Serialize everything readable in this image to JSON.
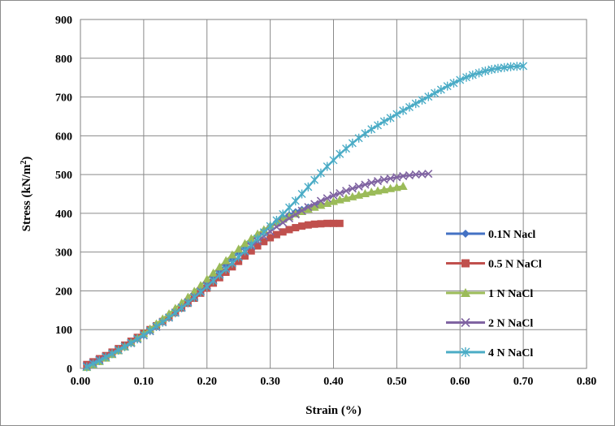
{
  "chart_data": {
    "type": "line",
    "title": "",
    "xlabel": "Strain (%)",
    "ylabel_main": "Stress  (kN/m",
    "ylabel_sup": "2",
    "ylabel_close": ")",
    "xlim": [
      0,
      0.8
    ],
    "ylim": [
      0,
      900
    ],
    "xticks": [
      0,
      0.1,
      0.2,
      0.3,
      0.4,
      0.5,
      0.6,
      0.7,
      0.8
    ],
    "xtick_labels": [
      "0.00",
      "0.10",
      "0.20",
      "0.30",
      "0.40",
      "0.50",
      "0.60",
      "0.70",
      "0.80"
    ],
    "yticks": [
      0,
      100,
      200,
      300,
      400,
      500,
      600,
      700,
      800,
      900
    ],
    "ytick_labels": [
      "0",
      "100",
      "200",
      "300",
      "400",
      "500",
      "600",
      "700",
      "800",
      "900"
    ],
    "grid": true,
    "legend_position": "right",
    "series": [
      {
        "name": "0.1N Nacl",
        "color": "#4472C4",
        "marker": "diamond",
        "points": [
          [
            0.01,
            5
          ],
          [
            0.02,
            12
          ],
          [
            0.03,
            20
          ],
          [
            0.04,
            28
          ],
          [
            0.05,
            37
          ],
          [
            0.06,
            46
          ],
          [
            0.07,
            55
          ],
          [
            0.08,
            65
          ],
          [
            0.09,
            75
          ],
          [
            0.1,
            85
          ],
          [
            0.11,
            96
          ],
          [
            0.12,
            108
          ],
          [
            0.13,
            120
          ],
          [
            0.14,
            133
          ],
          [
            0.15,
            146
          ],
          [
            0.16,
            160
          ],
          [
            0.17,
            175
          ],
          [
            0.18,
            190
          ],
          [
            0.19,
            205
          ],
          [
            0.2,
            220
          ],
          [
            0.21,
            236
          ],
          [
            0.22,
            252
          ],
          [
            0.23,
            268
          ],
          [
            0.24,
            284
          ],
          [
            0.25,
            300
          ],
          [
            0.26,
            315
          ],
          [
            0.27,
            330
          ],
          [
            0.28,
            343
          ],
          [
            0.29,
            356
          ],
          [
            0.3,
            367
          ],
          [
            0.31,
            378
          ],
          [
            0.32,
            388
          ],
          [
            0.33,
            396
          ],
          [
            0.34,
            404
          ],
          [
            0.35,
            410
          ],
          [
            0.36,
            416
          ],
          [
            0.37,
            420
          ],
          [
            0.38,
            424
          ]
        ]
      },
      {
        "name": "0.5 N NaCl",
        "color": "#C0504D",
        "marker": "square",
        "points": [
          [
            0.01,
            10
          ],
          [
            0.02,
            17
          ],
          [
            0.03,
            25
          ],
          [
            0.04,
            33
          ],
          [
            0.05,
            42
          ],
          [
            0.06,
            51
          ],
          [
            0.07,
            60
          ],
          [
            0.08,
            70
          ],
          [
            0.09,
            80
          ],
          [
            0.1,
            90
          ],
          [
            0.11,
            100
          ],
          [
            0.12,
            110
          ],
          [
            0.13,
            121
          ],
          [
            0.14,
            132
          ],
          [
            0.15,
            144
          ],
          [
            0.16,
            156
          ],
          [
            0.17,
            168
          ],
          [
            0.18,
            181
          ],
          [
            0.19,
            194
          ],
          [
            0.2,
            207
          ],
          [
            0.21,
            220
          ],
          [
            0.22,
            234
          ],
          [
            0.23,
            248
          ],
          [
            0.24,
            262
          ],
          [
            0.25,
            276
          ],
          [
            0.26,
            290
          ],
          [
            0.27,
            303
          ],
          [
            0.28,
            316
          ],
          [
            0.29,
            327
          ],
          [
            0.3,
            337
          ],
          [
            0.31,
            345
          ],
          [
            0.32,
            352
          ],
          [
            0.33,
            358
          ],
          [
            0.34,
            363
          ],
          [
            0.35,
            367
          ],
          [
            0.36,
            370
          ],
          [
            0.37,
            372
          ],
          [
            0.38,
            373
          ],
          [
            0.39,
            374
          ],
          [
            0.4,
            374
          ],
          [
            0.41,
            374
          ]
        ]
      },
      {
        "name": "1 N NaCl",
        "color": "#9BBB59",
        "marker": "triangle",
        "points": [
          [
            0.01,
            3
          ],
          [
            0.02,
            10
          ],
          [
            0.03,
            18
          ],
          [
            0.04,
            27
          ],
          [
            0.05,
            36
          ],
          [
            0.06,
            46
          ],
          [
            0.07,
            56
          ],
          [
            0.08,
            67
          ],
          [
            0.09,
            78
          ],
          [
            0.1,
            90
          ],
          [
            0.11,
            102
          ],
          [
            0.12,
            115
          ],
          [
            0.13,
            128
          ],
          [
            0.14,
            141
          ],
          [
            0.15,
            155
          ],
          [
            0.16,
            169
          ],
          [
            0.17,
            184
          ],
          [
            0.18,
            199
          ],
          [
            0.19,
            214
          ],
          [
            0.2,
            230
          ],
          [
            0.21,
            246
          ],
          [
            0.22,
            262
          ],
          [
            0.23,
            278
          ],
          [
            0.24,
            293
          ],
          [
            0.25,
            308
          ],
          [
            0.26,
            322
          ],
          [
            0.27,
            335
          ],
          [
            0.28,
            347
          ],
          [
            0.29,
            358
          ],
          [
            0.3,
            368
          ],
          [
            0.31,
            377
          ],
          [
            0.32,
            385
          ],
          [
            0.33,
            392
          ],
          [
            0.34,
            399
          ],
          [
            0.35,
            405
          ],
          [
            0.36,
            411
          ],
          [
            0.37,
            416
          ],
          [
            0.38,
            421
          ],
          [
            0.39,
            426
          ],
          [
            0.4,
            431
          ],
          [
            0.41,
            435
          ],
          [
            0.42,
            439
          ],
          [
            0.43,
            443
          ],
          [
            0.44,
            447
          ],
          [
            0.45,
            451
          ],
          [
            0.46,
            455
          ],
          [
            0.47,
            458
          ],
          [
            0.48,
            461
          ],
          [
            0.49,
            464
          ],
          [
            0.5,
            467
          ],
          [
            0.51,
            470
          ]
        ]
      },
      {
        "name": "2 N NaCl",
        "color": "#8064A2",
        "marker": "x",
        "points": [
          [
            0.01,
            6
          ],
          [
            0.02,
            14
          ],
          [
            0.03,
            22
          ],
          [
            0.04,
            30
          ],
          [
            0.05,
            38
          ],
          [
            0.06,
            47
          ],
          [
            0.07,
            56
          ],
          [
            0.08,
            65
          ],
          [
            0.09,
            75
          ],
          [
            0.1,
            85
          ],
          [
            0.11,
            96
          ],
          [
            0.12,
            107
          ],
          [
            0.13,
            119
          ],
          [
            0.14,
            131
          ],
          [
            0.15,
            144
          ],
          [
            0.16,
            157
          ],
          [
            0.17,
            171
          ],
          [
            0.18,
            185
          ],
          [
            0.19,
            199
          ],
          [
            0.2,
            214
          ],
          [
            0.21,
            228
          ],
          [
            0.22,
            243
          ],
          [
            0.23,
            258
          ],
          [
            0.24,
            272
          ],
          [
            0.25,
            287
          ],
          [
            0.26,
            301
          ],
          [
            0.27,
            315
          ],
          [
            0.28,
            328
          ],
          [
            0.29,
            341
          ],
          [
            0.3,
            353
          ],
          [
            0.31,
            365
          ],
          [
            0.32,
            376
          ],
          [
            0.33,
            387
          ],
          [
            0.34,
            397
          ],
          [
            0.35,
            407
          ],
          [
            0.36,
            416
          ],
          [
            0.37,
            424
          ],
          [
            0.38,
            432
          ],
          [
            0.39,
            439
          ],
          [
            0.4,
            446
          ],
          [
            0.41,
            452
          ],
          [
            0.42,
            458
          ],
          [
            0.43,
            464
          ],
          [
            0.44,
            469
          ],
          [
            0.45,
            474
          ],
          [
            0.46,
            479
          ],
          [
            0.47,
            483
          ],
          [
            0.48,
            487
          ],
          [
            0.49,
            490
          ],
          [
            0.5,
            493
          ],
          [
            0.51,
            496
          ],
          [
            0.52,
            498
          ],
          [
            0.53,
            500
          ],
          [
            0.54,
            501
          ],
          [
            0.55,
            502
          ]
        ]
      },
      {
        "name": "4 N NaCl",
        "color": "#4BACC6",
        "marker": "star",
        "points": [
          [
            0.01,
            4
          ],
          [
            0.02,
            12
          ],
          [
            0.03,
            20
          ],
          [
            0.04,
            29
          ],
          [
            0.05,
            38
          ],
          [
            0.06,
            47
          ],
          [
            0.07,
            56
          ],
          [
            0.08,
            66
          ],
          [
            0.09,
            76
          ],
          [
            0.1,
            86
          ],
          [
            0.11,
            97
          ],
          [
            0.12,
            108
          ],
          [
            0.13,
            119
          ],
          [
            0.14,
            131
          ],
          [
            0.15,
            143
          ],
          [
            0.16,
            156
          ],
          [
            0.17,
            169
          ],
          [
            0.18,
            183
          ],
          [
            0.19,
            197
          ],
          [
            0.2,
            211
          ],
          [
            0.21,
            226
          ],
          [
            0.22,
            241
          ],
          [
            0.23,
            256
          ],
          [
            0.24,
            271
          ],
          [
            0.25,
            287
          ],
          [
            0.26,
            303
          ],
          [
            0.27,
            319
          ],
          [
            0.28,
            335
          ],
          [
            0.29,
            351
          ],
          [
            0.3,
            367
          ],
          [
            0.31,
            382
          ],
          [
            0.32,
            398
          ],
          [
            0.33,
            415
          ],
          [
            0.34,
            432
          ],
          [
            0.35,
            450
          ],
          [
            0.36,
            468
          ],
          [
            0.37,
            486
          ],
          [
            0.38,
            504
          ],
          [
            0.39,
            521
          ],
          [
            0.4,
            537
          ],
          [
            0.41,
            553
          ],
          [
            0.42,
            567
          ],
          [
            0.43,
            581
          ],
          [
            0.44,
            594
          ],
          [
            0.45,
            606
          ],
          [
            0.46,
            617
          ],
          [
            0.47,
            627
          ],
          [
            0.48,
            637
          ],
          [
            0.49,
            646
          ],
          [
            0.5,
            656
          ],
          [
            0.51,
            665
          ],
          [
            0.52,
            674
          ],
          [
            0.53,
            683
          ],
          [
            0.54,
            692
          ],
          [
            0.55,
            701
          ],
          [
            0.56,
            710
          ],
          [
            0.57,
            719
          ],
          [
            0.58,
            728
          ],
          [
            0.59,
            736
          ],
          [
            0.6,
            744
          ],
          [
            0.61,
            751
          ],
          [
            0.62,
            757
          ],
          [
            0.63,
            762
          ],
          [
            0.64,
            767
          ],
          [
            0.65,
            771
          ],
          [
            0.66,
            774
          ],
          [
            0.67,
            776
          ],
          [
            0.68,
            778
          ],
          [
            0.69,
            779
          ],
          [
            0.7,
            780
          ]
        ]
      }
    ]
  }
}
